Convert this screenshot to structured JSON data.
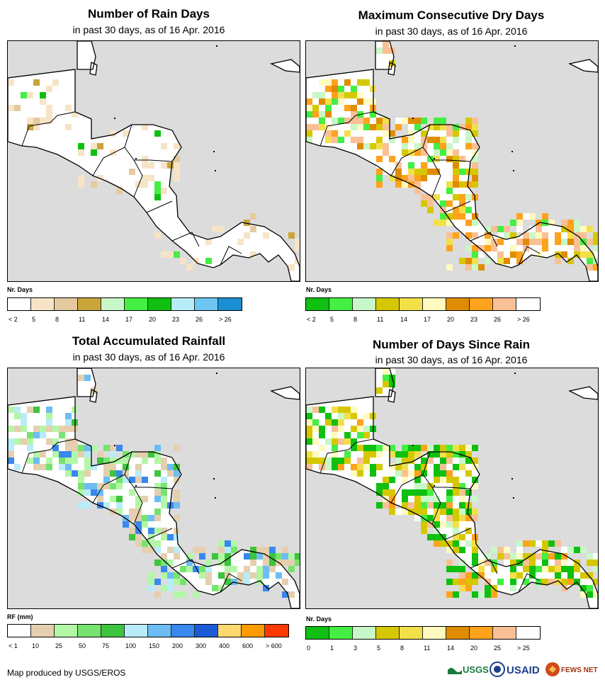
{
  "panels": [
    {
      "id": "rain-days",
      "title": "Number of Rain Days",
      "subtitle": "in past 30 days, as of 16 Apr. 2016",
      "legend_title": "Nr. Days",
      "legend_colors": [
        "#ffffff",
        "#f7e4c7",
        "#e5caa0",
        "#c9a53a",
        "#c8f7c8",
        "#44ee44",
        "#10c010",
        "#b9ecf9",
        "#6dc6f1",
        "#1b8fd4"
      ],
      "legend_labels": [
        "< 2",
        "5",
        "8",
        "11",
        "14",
        "17",
        "20",
        "23",
        "26",
        "> 26"
      ],
      "map_icon": "rain-days-map-icon"
    },
    {
      "id": "dry-days",
      "title": "Maximum Consecutive Dry Days",
      "subtitle": "in past 30 days, as of 16 Apr. 2016",
      "legend_title": "Nr. Days",
      "legend_colors": [
        "#10c010",
        "#44ee44",
        "#c8f7c8",
        "#d6c800",
        "#f2e04a",
        "#fffac0",
        "#e08c00",
        "#ffa21c",
        "#f9c096",
        "#ffffff"
      ],
      "legend_labels": [
        "< 2",
        "5",
        "8",
        "11",
        "14",
        "17",
        "20",
        "23",
        "26",
        "> 26"
      ],
      "map_icon": "dry-days-map-icon"
    },
    {
      "id": "rainfall",
      "title": "Total Accumulated Rainfall",
      "subtitle": "in past 30 days, as of 16 Apr. 2016",
      "legend_title": "RF (mm)",
      "legend_colors": [
        "#ffffff",
        "#e5cfae",
        "#b3f7a6",
        "#76e36e",
        "#3ec43e",
        "#b9ecf9",
        "#6dbdf4",
        "#3888ed",
        "#1c5bd8",
        "#fcd970",
        "#ff9a00",
        "#ff3a00"
      ],
      "legend_labels": [
        "< 1",
        "10",
        "25",
        "50",
        "75",
        "100",
        "150",
        "200",
        "300",
        "400",
        "600",
        "> 600"
      ],
      "map_icon": "rainfall-map-icon"
    },
    {
      "id": "days-since-rain",
      "title": "Number of Days Since Rain",
      "subtitle": "in past 30 days, as of 16 Apr. 2016",
      "legend_title": "Nr. Days",
      "legend_colors": [
        "#10c010",
        "#44ee44",
        "#c8f7c8",
        "#d6c800",
        "#f2e04a",
        "#fffac0",
        "#e08c00",
        "#ffa21c",
        "#f9c096",
        "#ffffff"
      ],
      "legend_labels": [
        "0",
        "1",
        "3",
        "5",
        "8",
        "11",
        "14",
        "20",
        "25",
        "> 25"
      ],
      "map_icon": "days-since-rain-map-icon"
    }
  ],
  "credit": "Map produced by USGS/EROS",
  "logos": [
    "USGS",
    "USAID",
    "FEWS NET"
  ],
  "colors": {
    "ocean": "#dcdcdc",
    "land": "#ffffff",
    "border": "#000000"
  }
}
